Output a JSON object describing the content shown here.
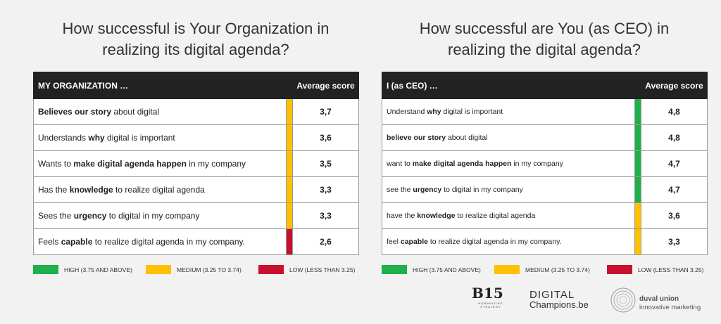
{
  "chart_data": [
    {
      "type": "table",
      "title_lines": [
        "How successful is Your Organization in",
        "realizing its digital agenda?"
      ],
      "header": {
        "label": "MY ORGANIZATION …",
        "score": "Average score"
      },
      "rows": [
        {
          "parts": [
            {
              "t": "Believes our story",
              "b": true
            },
            {
              "t": " about digital",
              "b": false
            }
          ],
          "value": "3,7",
          "level": "medium"
        },
        {
          "parts": [
            {
              "t": "Understands ",
              "b": false
            },
            {
              "t": "why",
              "b": true
            },
            {
              "t": " digital is important",
              "b": false
            }
          ],
          "value": "3,6",
          "level": "medium"
        },
        {
          "parts": [
            {
              "t": "Wants to ",
              "b": false
            },
            {
              "t": "make digital agenda happen",
              "b": true
            },
            {
              "t": " in my company",
              "b": false
            }
          ],
          "value": "3,5",
          "level": "medium"
        },
        {
          "parts": [
            {
              "t": "Has the ",
              "b": false
            },
            {
              "t": "knowledge",
              "b": true
            },
            {
              "t": " to realize digital agenda",
              "b": false
            }
          ],
          "value": "3,3",
          "level": "medium"
        },
        {
          "parts": [
            {
              "t": "Sees the ",
              "b": false
            },
            {
              "t": "urgency",
              "b": true
            },
            {
              "t": " to digital in my company",
              "b": false
            }
          ],
          "value": "3,3",
          "level": "medium"
        },
        {
          "parts": [
            {
              "t": "Feels ",
              "b": false
            },
            {
              "t": "capable",
              "b": true
            },
            {
              "t": " to realize digital agenda in my company.",
              "b": false
            }
          ],
          "value": "2,6",
          "level": "low"
        }
      ],
      "legend": [
        {
          "level": "high",
          "label": "HIGH (3.75 AND ABOVE)"
        },
        {
          "level": "medium",
          "label": "MEDIUM (3.25 TO 3.74)"
        },
        {
          "level": "low",
          "label": "LOW (LESS THAN 3.25)"
        }
      ]
    },
    {
      "type": "table",
      "title_lines": [
        "How successful are You (as CEO) in",
        "realizing the digital agenda?"
      ],
      "header": {
        "label": "I (as CEO) …",
        "score": "Average score"
      },
      "rows": [
        {
          "parts": [
            {
              "t": "Understand ",
              "b": false
            },
            {
              "t": "why",
              "b": true
            },
            {
              "t": " digital is important",
              "b": false
            }
          ],
          "value": "4,8",
          "level": "high"
        },
        {
          "parts": [
            {
              "t": "believe our story",
              "b": true
            },
            {
              "t": " about digital",
              "b": false
            }
          ],
          "value": "4,8",
          "level": "high"
        },
        {
          "parts": [
            {
              "t": "want to ",
              "b": false
            },
            {
              "t": "make digital agenda happen",
              "b": true
            },
            {
              "t": " in my company",
              "b": false
            }
          ],
          "value": "4,7",
          "level": "high"
        },
        {
          "parts": [
            {
              "t": "see the ",
              "b": false
            },
            {
              "t": "urgency",
              "b": true
            },
            {
              "t": " to digital in my company",
              "b": false
            }
          ],
          "value": "4,7",
          "level": "high"
        },
        {
          "parts": [
            {
              "t": "have the ",
              "b": false
            },
            {
              "t": "knowledge",
              "b": true
            },
            {
              "t": " to realize digital agenda",
              "b": false
            }
          ],
          "value": "3,6",
          "level": "medium"
        },
        {
          "parts": [
            {
              "t": "feel ",
              "b": false
            },
            {
              "t": "capable",
              "b": true
            },
            {
              "t": " to realize digital agenda in my company.",
              "b": false
            }
          ],
          "value": "3,3",
          "level": "medium"
        }
      ],
      "legend": [
        {
          "level": "high",
          "label": "HIGH (3.75 AND ABOVE)"
        },
        {
          "level": "medium",
          "label": "MEDIUM (3.25 TO 3.74)"
        },
        {
          "level": "low",
          "label": "LOW (LESS THAN 3.25)"
        }
      ]
    }
  ],
  "colors": {
    "high": "#1db04b",
    "medium": "#ffc000",
    "low": "#c8102e"
  },
  "logos": {
    "b15": {
      "mark": "B15",
      "sub": "HUMANIZING STRATEGY"
    },
    "digital_champions": {
      "line1": "DIGITAL",
      "line2": "Champions.be"
    },
    "duval": {
      "name": "duval union",
      "tagline": "innovative marketing"
    }
  }
}
